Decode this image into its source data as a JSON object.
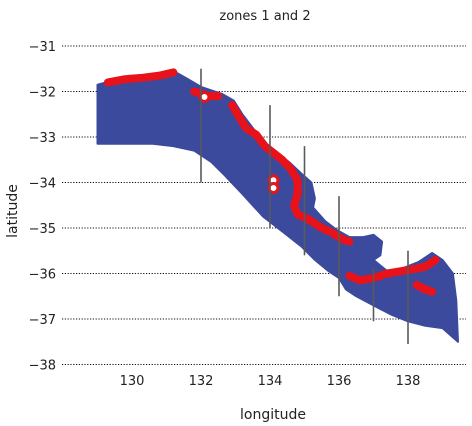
{
  "chart_data": {
    "type": "map",
    "title": "zones 1 and 2",
    "xlabel": "longitude",
    "ylabel": "latitude",
    "xlim": [
      128.85,
      139.6
    ],
    "ylim": [
      -38.1,
      -30.8
    ],
    "xticks": [
      130,
      132,
      134,
      136,
      138
    ],
    "yticks": [
      -31,
      -32,
      -33,
      -34,
      -35,
      -36,
      -37,
      -38
    ],
    "xtick_labels": [
      "130",
      "132",
      "134",
      "136",
      "138"
    ],
    "ytick_labels": [
      "−31",
      "−32",
      "−33",
      "−34",
      "−35",
      "−36",
      "−37",
      "−38"
    ],
    "grid": "horizontal dotted",
    "colors": {
      "region": "#3b4a9c",
      "zone_edge": "#e8121b",
      "transect": "#5a5a5a"
    },
    "region_outline": [
      [
        129.0,
        -31.85
      ],
      [
        129.5,
        -31.75
      ],
      [
        130.0,
        -31.72
      ],
      [
        130.5,
        -31.7
      ],
      [
        131.0,
        -31.62
      ],
      [
        131.2,
        -31.55
      ],
      [
        131.6,
        -31.72
      ],
      [
        132.0,
        -31.9
      ],
      [
        132.6,
        -32.05
      ],
      [
        132.95,
        -32.2
      ],
      [
        133.2,
        -32.5
      ],
      [
        133.55,
        -32.85
      ],
      [
        133.9,
        -33.15
      ],
      [
        134.2,
        -33.35
      ],
      [
        134.55,
        -33.55
      ],
      [
        134.9,
        -33.8
      ],
      [
        135.2,
        -34.0
      ],
      [
        135.3,
        -34.35
      ],
      [
        135.25,
        -34.55
      ],
      [
        135.6,
        -34.85
      ],
      [
        135.95,
        -35.05
      ],
      [
        136.3,
        -35.2
      ],
      [
        136.7,
        -35.2
      ],
      [
        137.0,
        -35.15
      ],
      [
        137.25,
        -35.3
      ],
      [
        137.2,
        -35.6
      ],
      [
        137.0,
        -35.7
      ],
      [
        137.4,
        -35.95
      ],
      [
        137.8,
        -35.9
      ],
      [
        138.3,
        -35.75
      ],
      [
        138.7,
        -35.55
      ],
      [
        139.0,
        -35.7
      ],
      [
        139.3,
        -36.0
      ],
      [
        139.4,
        -36.6
      ],
      [
        139.45,
        -37.5
      ],
      [
        139.0,
        -37.2
      ],
      [
        138.5,
        -37.15
      ],
      [
        138.0,
        -37.05
      ],
      [
        137.5,
        -36.9
      ],
      [
        137.0,
        -36.7
      ],
      [
        136.5,
        -36.5
      ],
      [
        136.2,
        -36.35
      ],
      [
        136.0,
        -36.1
      ],
      [
        135.7,
        -35.95
      ],
      [
        135.3,
        -35.7
      ],
      [
        134.9,
        -35.4
      ],
      [
        134.4,
        -35.1
      ],
      [
        133.8,
        -34.75
      ],
      [
        133.2,
        -34.25
      ],
      [
        132.7,
        -33.85
      ],
      [
        132.3,
        -33.55
      ],
      [
        131.8,
        -33.3
      ],
      [
        131.2,
        -33.2
      ],
      [
        130.6,
        -33.15
      ],
      [
        130.0,
        -33.15
      ],
      [
        129.4,
        -33.15
      ],
      [
        129.0,
        -33.15
      ]
    ],
    "zone_edge_segments": [
      [
        [
          129.3,
          -31.8
        ],
        [
          129.8,
          -31.73
        ],
        [
          130.3,
          -31.7
        ],
        [
          130.8,
          -31.65
        ],
        [
          131.2,
          -31.58
        ]
      ],
      [
        [
          131.8,
          -32.0
        ],
        [
          132.2,
          -32.1
        ],
        [
          132.5,
          -32.1
        ]
      ],
      [
        [
          132.9,
          -32.3
        ],
        [
          133.1,
          -32.55
        ],
        [
          133.3,
          -32.8
        ],
        [
          133.6,
          -32.95
        ],
        [
          133.85,
          -33.2
        ],
        [
          134.1,
          -33.35
        ],
        [
          134.35,
          -33.5
        ],
        [
          134.6,
          -33.7
        ],
        [
          134.8,
          -33.95
        ],
        [
          134.8,
          -34.25
        ],
        [
          134.7,
          -34.5
        ],
        [
          134.8,
          -34.7
        ],
        [
          135.1,
          -34.8
        ],
        [
          135.5,
          -35.0
        ],
        [
          135.8,
          -35.1
        ],
        [
          136.1,
          -35.25
        ],
        [
          136.3,
          -35.3
        ]
      ],
      [
        [
          136.3,
          -36.05
        ],
        [
          136.6,
          -36.15
        ],
        [
          137.0,
          -36.1
        ],
        [
          137.4,
          -36.0
        ],
        [
          137.8,
          -35.95
        ],
        [
          138.2,
          -35.9
        ],
        [
          138.5,
          -35.85
        ],
        [
          138.8,
          -35.7
        ]
      ],
      [
        [
          138.25,
          -36.25
        ],
        [
          138.5,
          -36.35
        ],
        [
          138.7,
          -36.4
        ]
      ]
    ],
    "spots": [
      {
        "x": 132.1,
        "y": -32.12
      },
      {
        "x": 134.1,
        "y": -33.95
      },
      {
        "x": 134.1,
        "y": -34.12
      }
    ],
    "transects": [
      {
        "x": 132.0,
        "y_top": -31.5,
        "y_bottom": -34.0
      },
      {
        "x": 134.0,
        "y_top": -32.3,
        "y_bottom": -35.0
      },
      {
        "x": 135.0,
        "y_top": -33.2,
        "y_bottom": -35.6
      },
      {
        "x": 136.0,
        "y_top": -34.3,
        "y_bottom": -36.5
      },
      {
        "x": 137.0,
        "y_top": -35.9,
        "y_bottom": -37.05
      },
      {
        "x": 138.0,
        "y_top": -35.5,
        "y_bottom": -37.55
      }
    ]
  }
}
